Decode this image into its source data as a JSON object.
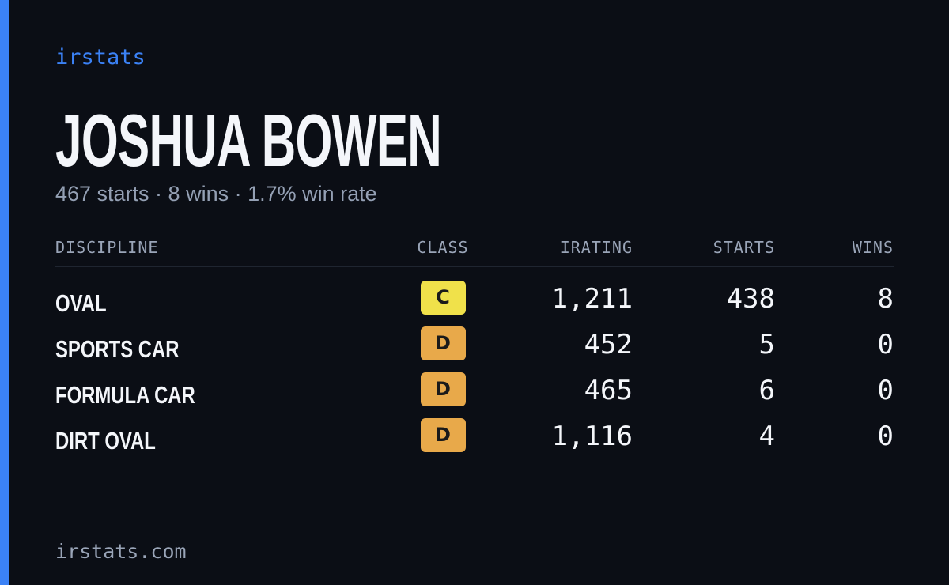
{
  "brand": "irstats",
  "name": "JOSHUA BOWEN",
  "summary": "467 starts · 8 wins · 1.7% win rate",
  "table": {
    "headers": [
      "DISCIPLINE",
      "CLASS",
      "IRATING",
      "STARTS",
      "WINS"
    ],
    "rows": [
      [
        "OVAL",
        "C",
        "1,211",
        "438",
        "8"
      ],
      [
        "SPORTS CAR",
        "D",
        "452",
        "5",
        "0"
      ],
      [
        "FORMULA CAR",
        "D",
        "465",
        "6",
        "0"
      ],
      [
        "DIRT OVAL",
        "D",
        "1,116",
        "4",
        "0"
      ]
    ],
    "badge_colors": [
      "#f0e14a",
      "#e8a94a",
      "#e8a94a",
      "#e8a94a"
    ]
  },
  "footer": "irstats.com"
}
